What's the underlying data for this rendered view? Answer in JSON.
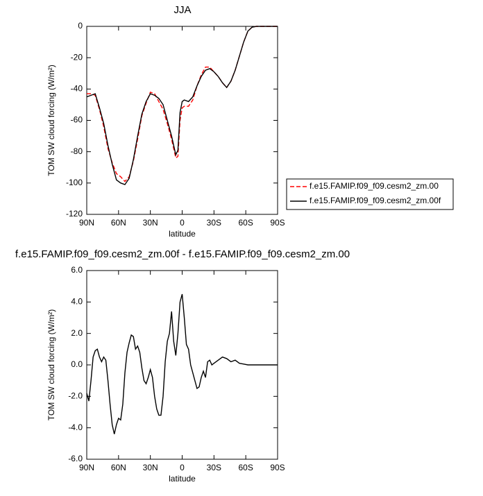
{
  "chart_data": [
    {
      "type": "line",
      "title": "JJA",
      "xlabel": "latitude",
      "ylabel": "TOM SW cloud forcing (W/m²)",
      "x": [
        90,
        86,
        82,
        78,
        74,
        70,
        66,
        62,
        58,
        54,
        50,
        46,
        42,
        38,
        34,
        30,
        26,
        22,
        18,
        14,
        10,
        6,
        4,
        2,
        0,
        -2,
        -6,
        -10,
        -14,
        -18,
        -22,
        -26,
        -30,
        -34,
        -38,
        -42,
        -46,
        -50,
        -54,
        -58,
        -62,
        -66,
        -70,
        -78,
        -90
      ],
      "xlim": [
        90,
        -90
      ],
      "xticks": [
        {
          "value": 90,
          "label": "90N"
        },
        {
          "value": 60,
          "label": "60N"
        },
        {
          "value": 30,
          "label": "30N"
        },
        0,
        {
          "value": -30,
          "label": "30S"
        },
        {
          "value": -60,
          "label": "60S"
        },
        {
          "value": -90,
          "label": "90S"
        }
      ],
      "ylim": [
        -120,
        0
      ],
      "yticks": [
        0,
        -20,
        -40,
        -60,
        -80,
        -100,
        -120
      ],
      "legend_position": "right",
      "series": [
        {
          "name": "f.e15.FAMIP.f09_f09.cesm2_zm.00",
          "color": "#ff0000",
          "line_style": "dashed",
          "values": [
            -43,
            -43,
            -44,
            -53,
            -64,
            -78,
            -87,
            -94,
            -96,
            -99,
            -96,
            -86,
            -72,
            -57,
            -49,
            -42,
            -43,
            -48,
            -53,
            -62,
            -72,
            -84,
            -83,
            -60,
            -52,
            -51,
            -51,
            -47,
            -38,
            -31,
            -26,
            -26,
            -29,
            -32,
            -36,
            -39,
            -35,
            -28,
            -19,
            -10,
            -3,
            -0.5,
            0,
            0,
            0
          ]
        },
        {
          "name": "f.e15.FAMIP.f09_f09.cesm2_zm.00f",
          "color": "#000000",
          "line_style": "solid",
          "values": [
            -45,
            -44,
            -43,
            -52,
            -62,
            -76,
            -88,
            -98,
            -100,
            -101,
            -97,
            -85,
            -70,
            -56,
            -48,
            -43,
            -44,
            -46,
            -50,
            -60,
            -70,
            -82,
            -79,
            -55,
            -48,
            -47,
            -48,
            -45,
            -38,
            -32,
            -28,
            -27,
            -29,
            -32,
            -36,
            -39,
            -35,
            -28,
            -19,
            -10,
            -3,
            -0.5,
            0,
            0,
            0
          ]
        }
      ]
    },
    {
      "type": "line",
      "title": "f.e15.FAMIP.f09_f09.cesm2_zm.00f - f.e15.FAMIP.f09_f09.cesm2_zm.00",
      "xlabel": "latitude",
      "ylabel": "TOM SW cloud forcing (W/m²)",
      "x": [
        90,
        88,
        86,
        84,
        82,
        80,
        78,
        76,
        74,
        72,
        70,
        68,
        66,
        64,
        62,
        60,
        58,
        56,
        54,
        52,
        50,
        48,
        46,
        44,
        42,
        40,
        38,
        36,
        34,
        32,
        30,
        28,
        26,
        24,
        22,
        20,
        18,
        16,
        14,
        12,
        10,
        8,
        6,
        4,
        2,
        0,
        -2,
        -4,
        -6,
        -8,
        -10,
        -12,
        -14,
        -16,
        -18,
        -20,
        -22,
        -24,
        -26,
        -28,
        -30,
        -34,
        -38,
        -42,
        -46,
        -50,
        -54,
        -58,
        -62,
        -70,
        -90
      ],
      "xlim": [
        90,
        -90
      ],
      "xticks": [
        {
          "value": 90,
          "label": "90N"
        },
        {
          "value": 60,
          "label": "60N"
        },
        {
          "value": 30,
          "label": "30N"
        },
        0,
        {
          "value": -30,
          "label": "30S"
        },
        {
          "value": -60,
          "label": "60S"
        },
        {
          "value": -90,
          "label": "90S"
        }
      ],
      "ylim": [
        -6,
        6
      ],
      "yticks": [
        {
          "value": 6,
          "label": "6.0"
        },
        {
          "value": 4,
          "label": "4.0"
        },
        {
          "value": 2,
          "label": "2.0"
        },
        {
          "value": 0,
          "label": "0.0"
        },
        {
          "value": -2,
          "label": "-2.0"
        },
        {
          "value": -4,
          "label": "-4.0"
        },
        {
          "value": -6,
          "label": "-6.0"
        }
      ],
      "series": [
        {
          "color": "#000000",
          "line_style": "solid",
          "values": [
            -1.8,
            -2.3,
            -1.0,
            0.5,
            0.9,
            1.0,
            0.5,
            0.2,
            0.5,
            0.3,
            -1.0,
            -2.5,
            -3.8,
            -4.4,
            -3.8,
            -3.4,
            -3.5,
            -2.5,
            -0.5,
            0.8,
            1.4,
            1.9,
            1.8,
            1.0,
            1.2,
            0.8,
            -0.2,
            -1.0,
            -1.2,
            -0.8,
            -0.3,
            -0.8,
            -2.0,
            -2.8,
            -3.2,
            -3.2,
            -2.0,
            0.2,
            1.5,
            2.0,
            3.4,
            1.5,
            0.6,
            2.0,
            4.0,
            4.5,
            3.0,
            1.3,
            1.0,
            0.0,
            -0.5,
            -1.0,
            -1.5,
            -1.4,
            -0.8,
            -0.4,
            -0.8,
            0.2,
            0.3,
            0.0,
            0.1,
            0.3,
            0.5,
            0.4,
            0.2,
            0.3,
            0.1,
            0.05,
            0,
            0,
            0
          ]
        }
      ]
    }
  ]
}
